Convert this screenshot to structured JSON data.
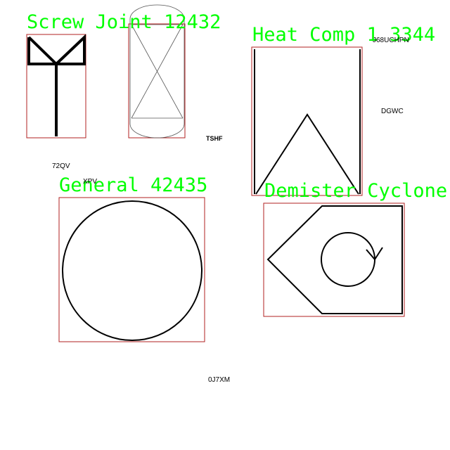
{
  "symbols": [
    {
      "label": "Screw Joint 12432",
      "icon": "screw-joint-icon"
    },
    {
      "label": "Heat Comp 1 3344",
      "icon": "heat-comp-icon"
    },
    {
      "label": "General 42435",
      "icon": "general-circle-icon"
    },
    {
      "label": "Demister Cyclone T",
      "icon": "demister-cyclone-icon"
    }
  ],
  "text_labels": [
    "J68UCHPN",
    "DGWC",
    "TSHF",
    "72QV",
    "XPV",
    "0J7XM"
  ],
  "colors": {
    "label": "#00ff00",
    "bbox": "#b22222",
    "symbol": "#000000"
  }
}
